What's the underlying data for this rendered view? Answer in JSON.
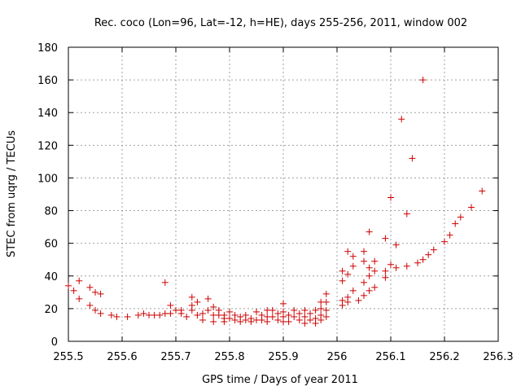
{
  "chart_data": {
    "type": "scatter",
    "title": "Rec. coco (Lon=96, Lat=-12, h=HE), days 255-256, 2011, window 002",
    "xlabel": "GPS time / Days of year 2011",
    "ylabel": "STEC from uqrg / TECUs",
    "xlim": [
      255.5,
      256.3
    ],
    "ylim": [
      0,
      180
    ],
    "xticks": [
      255.5,
      255.6,
      255.7,
      255.8,
      255.9,
      256,
      256.1,
      256.2,
      256.3
    ],
    "xtick_labels": [
      "255.5",
      "255.6",
      "255.7",
      "255.8",
      "255.9",
      "256",
      "256.1",
      "256.2",
      "256.3"
    ],
    "yticks": [
      0,
      20,
      40,
      60,
      80,
      100,
      120,
      140,
      160,
      180
    ],
    "ytick_labels": [
      "0",
      "20",
      "40",
      "60",
      "80",
      "100",
      "120",
      "140",
      "160",
      "180"
    ],
    "grid": true,
    "marker": "plus",
    "color": "#cc0000",
    "series": [
      {
        "name": "STEC",
        "points": [
          [
            255.5,
            34
          ],
          [
            255.51,
            31
          ],
          [
            255.52,
            37
          ],
          [
            255.52,
            26
          ],
          [
            255.54,
            33
          ],
          [
            255.54,
            22
          ],
          [
            255.55,
            30
          ],
          [
            255.55,
            19
          ],
          [
            255.56,
            29
          ],
          [
            255.56,
            17
          ],
          [
            255.58,
            16
          ],
          [
            255.59,
            15
          ],
          [
            255.61,
            15
          ],
          [
            255.63,
            16
          ],
          [
            255.64,
            17
          ],
          [
            255.65,
            16
          ],
          [
            255.66,
            16
          ],
          [
            255.67,
            16
          ],
          [
            255.68,
            17
          ],
          [
            255.68,
            36
          ],
          [
            255.69,
            22
          ],
          [
            255.69,
            17
          ],
          [
            255.7,
            19
          ],
          [
            255.71,
            19
          ],
          [
            255.71,
            17
          ],
          [
            255.72,
            15
          ],
          [
            255.73,
            27
          ],
          [
            255.73,
            22
          ],
          [
            255.73,
            19
          ],
          [
            255.74,
            16
          ],
          [
            255.74,
            24
          ],
          [
            255.75,
            17
          ],
          [
            255.75,
            13
          ],
          [
            255.76,
            26
          ],
          [
            255.76,
            19
          ],
          [
            255.77,
            21
          ],
          [
            255.77,
            16
          ],
          [
            255.77,
            12
          ],
          [
            255.78,
            19
          ],
          [
            255.78,
            16
          ],
          [
            255.79,
            16
          ],
          [
            255.79,
            14
          ],
          [
            255.79,
            12
          ],
          [
            255.8,
            18
          ],
          [
            255.8,
            14
          ],
          [
            255.81,
            16
          ],
          [
            255.81,
            13
          ],
          [
            255.82,
            15
          ],
          [
            255.82,
            12
          ],
          [
            255.83,
            16
          ],
          [
            255.83,
            13
          ],
          [
            255.84,
            14
          ],
          [
            255.84,
            12
          ],
          [
            255.85,
            18
          ],
          [
            255.85,
            13
          ],
          [
            255.86,
            16
          ],
          [
            255.86,
            13
          ],
          [
            255.87,
            19
          ],
          [
            255.87,
            15
          ],
          [
            255.87,
            12
          ],
          [
            255.88,
            19
          ],
          [
            255.88,
            15
          ],
          [
            255.89,
            17
          ],
          [
            255.89,
            13
          ],
          [
            255.9,
            23
          ],
          [
            255.9,
            18
          ],
          [
            255.9,
            15
          ],
          [
            255.9,
            12
          ],
          [
            255.91,
            16
          ],
          [
            255.91,
            12
          ],
          [
            255.92,
            19
          ],
          [
            255.92,
            15
          ],
          [
            255.93,
            17
          ],
          [
            255.93,
            13
          ],
          [
            255.94,
            19
          ],
          [
            255.94,
            15
          ],
          [
            255.94,
            11
          ],
          [
            255.95,
            17
          ],
          [
            255.95,
            13
          ],
          [
            255.96,
            19
          ],
          [
            255.96,
            14
          ],
          [
            255.96,
            11
          ],
          [
            255.97,
            24
          ],
          [
            255.97,
            20
          ],
          [
            255.97,
            16
          ],
          [
            255.97,
            13
          ],
          [
            255.98,
            29
          ],
          [
            255.98,
            24
          ],
          [
            255.98,
            19
          ],
          [
            255.98,
            15
          ],
          [
            256.01,
            43
          ],
          [
            256.01,
            37
          ],
          [
            256.01,
            25
          ],
          [
            256.01,
            22
          ],
          [
            256.02,
            55
          ],
          [
            256.02,
            41
          ],
          [
            256.02,
            27
          ],
          [
            256.02,
            24
          ],
          [
            256.03,
            52
          ],
          [
            256.03,
            46
          ],
          [
            256.03,
            31
          ],
          [
            256.04,
            25
          ],
          [
            256.05,
            55
          ],
          [
            256.05,
            49
          ],
          [
            256.05,
            36
          ],
          [
            256.05,
            28
          ],
          [
            256.06,
            67
          ],
          [
            256.06,
            45
          ],
          [
            256.06,
            40
          ],
          [
            256.06,
            31
          ],
          [
            256.07,
            49
          ],
          [
            256.07,
            43
          ],
          [
            256.07,
            33
          ],
          [
            256.09,
            63
          ],
          [
            256.09,
            43
          ],
          [
            256.09,
            39
          ],
          [
            256.1,
            88
          ],
          [
            256.1,
            47
          ],
          [
            256.11,
            59
          ],
          [
            256.11,
            45
          ],
          [
            256.12,
            136
          ],
          [
            256.13,
            78
          ],
          [
            256.13,
            46
          ],
          [
            256.14,
            112
          ],
          [
            256.15,
            48
          ],
          [
            256.16,
            160
          ],
          [
            256.16,
            50
          ],
          [
            256.17,
            53
          ],
          [
            256.18,
            56
          ],
          [
            256.2,
            61
          ],
          [
            256.21,
            65
          ],
          [
            256.22,
            72
          ],
          [
            256.23,
            76
          ],
          [
            256.25,
            82
          ],
          [
            256.27,
            92
          ]
        ]
      }
    ]
  }
}
